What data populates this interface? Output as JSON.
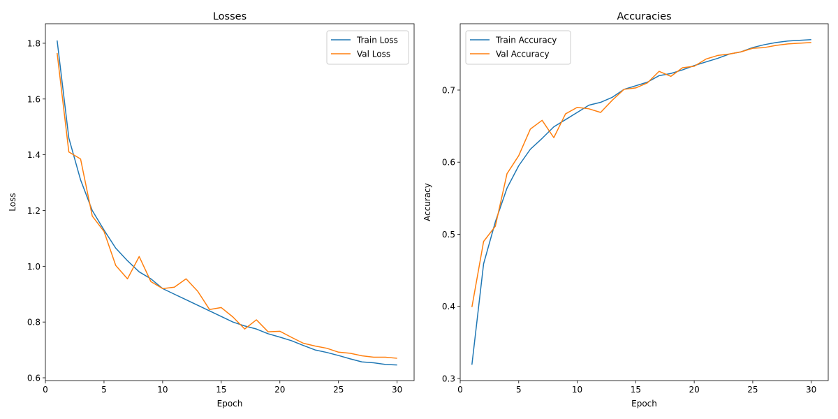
{
  "chart_data": [
    {
      "type": "line",
      "title": "Losses",
      "xlabel": "Epoch",
      "ylabel": "Loss",
      "xlim": [
        0,
        31.45
      ],
      "ylim": [
        0.59,
        1.87
      ],
      "xticks": [
        0,
        5,
        10,
        15,
        20,
        25,
        30
      ],
      "yticks": [
        0.6,
        0.8,
        1.0,
        1.2,
        1.4,
        1.6,
        1.8
      ],
      "ytick_labels": [
        "0.6",
        "0.8",
        "1.0",
        "1.2",
        "1.4",
        "1.6",
        "1.8"
      ],
      "legend_position": "top-right",
      "x": [
        1,
        2,
        3,
        4,
        5,
        6,
        7,
        8,
        9,
        10,
        11,
        12,
        13,
        14,
        15,
        16,
        17,
        18,
        19,
        20,
        21,
        22,
        23,
        24,
        25,
        26,
        27,
        28,
        29,
        30
      ],
      "series": [
        {
          "name": "Train Loss",
          "color": "#1f77b4",
          "values": [
            1.81,
            1.46,
            1.31,
            1.2,
            1.13,
            1.065,
            1.02,
            0.98,
            0.955,
            0.92,
            0.9,
            0.88,
            0.86,
            0.84,
            0.82,
            0.8,
            0.786,
            0.775,
            0.758,
            0.746,
            0.733,
            0.716,
            0.7,
            0.691,
            0.68,
            0.668,
            0.657,
            0.654,
            0.648,
            0.646
          ]
        },
        {
          "name": "Val Loss",
          "color": "#ff7f0e",
          "values": [
            1.765,
            1.41,
            1.385,
            1.18,
            1.125,
            1.003,
            0.955,
            1.035,
            0.945,
            0.92,
            0.925,
            0.955,
            0.91,
            0.845,
            0.852,
            0.818,
            0.775,
            0.808,
            0.765,
            0.767,
            0.745,
            0.724,
            0.714,
            0.706,
            0.692,
            0.688,
            0.679,
            0.674,
            0.674,
            0.67
          ]
        }
      ]
    },
    {
      "type": "line",
      "title": "Accuracies",
      "xlabel": "Epoch",
      "ylabel": "Accuracy",
      "xlim": [
        0,
        31.45
      ],
      "ylim": [
        0.297,
        0.792
      ],
      "xticks": [
        0,
        5,
        10,
        15,
        20,
        25,
        30
      ],
      "yticks": [
        0.3,
        0.4,
        0.5,
        0.6,
        0.7
      ],
      "ytick_labels": [
        "0.3",
        "0.4",
        "0.5",
        "0.6",
        "0.7"
      ],
      "legend_position": "top-left",
      "x": [
        1,
        2,
        3,
        4,
        5,
        6,
        7,
        8,
        9,
        10,
        11,
        12,
        13,
        14,
        15,
        16,
        17,
        18,
        19,
        20,
        21,
        22,
        23,
        24,
        25,
        26,
        27,
        28,
        29,
        30
      ],
      "series": [
        {
          "name": "Train Accuracy",
          "color": "#1f77b4",
          "values": [
            0.319,
            0.459,
            0.517,
            0.564,
            0.595,
            0.618,
            0.633,
            0.649,
            0.659,
            0.669,
            0.679,
            0.683,
            0.69,
            0.701,
            0.706,
            0.711,
            0.72,
            0.723,
            0.728,
            0.734,
            0.739,
            0.744,
            0.75,
            0.753,
            0.759,
            0.763,
            0.766,
            0.768,
            0.769,
            0.77
          ]
        },
        {
          "name": "Val Accuracy",
          "color": "#ff7f0e",
          "values": [
            0.399,
            0.49,
            0.511,
            0.584,
            0.609,
            0.646,
            0.658,
            0.634,
            0.667,
            0.676,
            0.674,
            0.669,
            0.686,
            0.701,
            0.703,
            0.71,
            0.726,
            0.719,
            0.731,
            0.733,
            0.743,
            0.748,
            0.75,
            0.753,
            0.758,
            0.759,
            0.762,
            0.764,
            0.765,
            0.766
          ]
        }
      ]
    }
  ]
}
